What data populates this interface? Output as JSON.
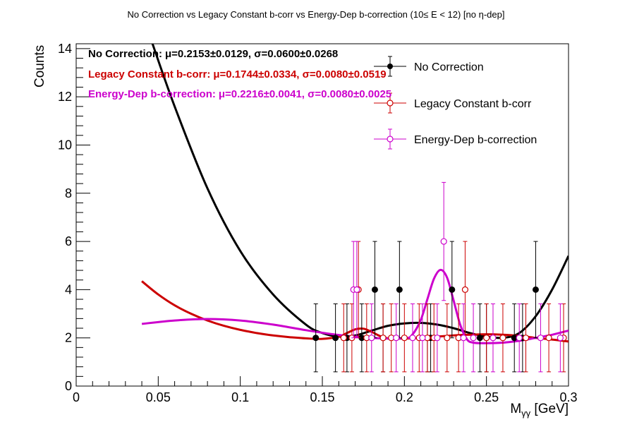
{
  "chart_data": {
    "type": "scatter",
    "title": "No Correction vs Legacy Constant b-corr vs Energy-Dep b-correction   (10≤ E < 12)   [no η-dep]",
    "xlabel": "Mγγ [GeV]",
    "xlabel_main": "M",
    "xlabel_sub": "γγ",
    "xlabel_unit": " [GeV]",
    "ylabel": "Counts",
    "xlim": [
      0,
      0.3
    ],
    "ylim": [
      0,
      14.2
    ],
    "xticks": [
      0,
      0.05,
      0.1,
      0.15,
      0.2,
      0.25,
      0.3
    ],
    "xtick_labels": [
      "0",
      "0.05",
      "0.1",
      "0.15",
      "0.2",
      "0.25",
      "0.3"
    ],
    "yticks": [
      0,
      2,
      4,
      6,
      8,
      10,
      12,
      14
    ],
    "ytick_labels": [
      "0",
      "2",
      "4",
      "6",
      "8",
      "10",
      "12",
      "14"
    ],
    "grid": false,
    "legend_position": "top-right",
    "series": [
      {
        "name": "No Correction",
        "color": "#000000",
        "marker": "filled-circle",
        "points": [
          {
            "x": 0.146,
            "y": 2,
            "err": 1.41
          },
          {
            "x": 0.158,
            "y": 2,
            "err": 1.41
          },
          {
            "x": 0.165,
            "y": 2,
            "err": 1.41
          },
          {
            "x": 0.174,
            "y": 2,
            "err": 1.41
          },
          {
            "x": 0.182,
            "y": 4,
            "err": 2.0
          },
          {
            "x": 0.187,
            "y": 2,
            "err": 1.41
          },
          {
            "x": 0.197,
            "y": 4,
            "err": 2.0
          },
          {
            "x": 0.214,
            "y": 2,
            "err": 1.41
          },
          {
            "x": 0.216,
            "y": 2,
            "err": 1.41
          },
          {
            "x": 0.229,
            "y": 4,
            "err": 2.0
          },
          {
            "x": 0.246,
            "y": 2,
            "err": 1.41
          },
          {
            "x": 0.25,
            "y": 2,
            "err": 1.41
          },
          {
            "x": 0.267,
            "y": 2,
            "err": 1.41
          },
          {
            "x": 0.272,
            "y": 2,
            "err": 1.41
          },
          {
            "x": 0.28,
            "y": 4,
            "err": 2.0
          }
        ],
        "fit": {
          "x": [
            0.045,
            0.06,
            0.08,
            0.1,
            0.12,
            0.14,
            0.15,
            0.16,
            0.17,
            0.18,
            0.19,
            0.2,
            0.21,
            0.22,
            0.23,
            0.24,
            0.25,
            0.26,
            0.27,
            0.28,
            0.29,
            0.3
          ],
          "y": [
            14.5,
            11.6,
            8.2,
            5.6,
            3.8,
            2.55,
            2.2,
            2.05,
            2.1,
            2.3,
            2.5,
            2.6,
            2.62,
            2.55,
            2.4,
            2.2,
            2.05,
            2.0,
            2.2,
            2.9,
            4.0,
            5.4
          ]
        }
      },
      {
        "name": "Legacy Constant b-corr",
        "color": "#cc0000",
        "marker": "open-circle",
        "points": [
          {
            "x": 0.163,
            "y": 2,
            "err": 1.41
          },
          {
            "x": 0.168,
            "y": 2,
            "err": 1.41
          },
          {
            "x": 0.172,
            "y": 4,
            "err": 2.0
          },
          {
            "x": 0.177,
            "y": 2,
            "err": 1.41
          },
          {
            "x": 0.187,
            "y": 2,
            "err": 1.41
          },
          {
            "x": 0.192,
            "y": 2,
            "err": 1.41
          },
          {
            "x": 0.2,
            "y": 2,
            "err": 1.41
          },
          {
            "x": 0.209,
            "y": 2,
            "err": 1.41
          },
          {
            "x": 0.214,
            "y": 2,
            "err": 1.41
          },
          {
            "x": 0.218,
            "y": 2,
            "err": 1.41
          },
          {
            "x": 0.226,
            "y": 2,
            "err": 1.41
          },
          {
            "x": 0.233,
            "y": 2,
            "err": 1.41
          },
          {
            "x": 0.237,
            "y": 4,
            "err": 2.0
          },
          {
            "x": 0.25,
            "y": 2,
            "err": 1.41
          },
          {
            "x": 0.26,
            "y": 2,
            "err": 1.41
          },
          {
            "x": 0.274,
            "y": 2,
            "err": 1.41
          },
          {
            "x": 0.288,
            "y": 2,
            "err": 1.41
          },
          {
            "x": 0.297,
            "y": 2,
            "err": 1.41
          }
        ],
        "fit": {
          "x": [
            0.04,
            0.05,
            0.06,
            0.07,
            0.08,
            0.09,
            0.1,
            0.11,
            0.12,
            0.13,
            0.14,
            0.15,
            0.16,
            0.165,
            0.17,
            0.175,
            0.18,
            0.185,
            0.19,
            0.2,
            0.21,
            0.22,
            0.23,
            0.24,
            0.25,
            0.26,
            0.27,
            0.28,
            0.29,
            0.3
          ],
          "y": [
            4.35,
            3.8,
            3.35,
            3.0,
            2.72,
            2.5,
            2.33,
            2.2,
            2.1,
            2.03,
            1.98,
            1.96,
            2.05,
            2.2,
            2.35,
            2.38,
            2.25,
            2.08,
            1.98,
            1.97,
            2.0,
            2.05,
            2.1,
            2.13,
            2.15,
            2.13,
            2.08,
            2.0,
            1.93,
            1.85
          ]
        }
      },
      {
        "name": "Energy-Dep b-correction",
        "color": "#cc00cc",
        "marker": "open-circle",
        "points": [
          {
            "x": 0.169,
            "y": 4,
            "err": 2.0
          },
          {
            "x": 0.171,
            "y": 4,
            "err": 2.0
          },
          {
            "x": 0.18,
            "y": 2,
            "err": 1.41
          },
          {
            "x": 0.195,
            "y": 2,
            "err": 1.41
          },
          {
            "x": 0.205,
            "y": 2,
            "err": 1.41
          },
          {
            "x": 0.211,
            "y": 2,
            "err": 1.41
          },
          {
            "x": 0.22,
            "y": 2,
            "err": 1.41
          },
          {
            "x": 0.224,
            "y": 6,
            "err": 2.45
          },
          {
            "x": 0.236,
            "y": 2,
            "err": 1.41
          },
          {
            "x": 0.242,
            "y": 2,
            "err": 1.41
          },
          {
            "x": 0.254,
            "y": 2,
            "err": 1.41
          },
          {
            "x": 0.27,
            "y": 2,
            "err": 1.41
          },
          {
            "x": 0.283,
            "y": 2,
            "err": 1.41
          },
          {
            "x": 0.295,
            "y": 2,
            "err": 1.41
          }
        ],
        "fit": {
          "x": [
            0.04,
            0.06,
            0.08,
            0.1,
            0.12,
            0.14,
            0.16,
            0.18,
            0.2,
            0.205,
            0.21,
            0.214,
            0.218,
            0.222,
            0.226,
            0.23,
            0.234,
            0.238,
            0.242,
            0.25,
            0.26,
            0.27,
            0.28,
            0.29,
            0.3
          ],
          "y": [
            2.58,
            2.72,
            2.78,
            2.72,
            2.55,
            2.32,
            2.12,
            2.0,
            1.98,
            2.15,
            2.75,
            3.6,
            4.45,
            4.82,
            4.5,
            3.55,
            2.55,
            1.95,
            1.8,
            1.78,
            1.8,
            1.88,
            2.0,
            2.13,
            2.3
          ]
        }
      }
    ],
    "fit_results": [
      {
        "label": "No Correction:",
        "value": "μ=0.2153±0.0129, σ=0.0600±0.0268",
        "color": "#000000"
      },
      {
        "label": "Legacy Constant b-corr:",
        "value": "μ=0.1744±0.0334, σ=0.0080±0.0519",
        "color": "#cc0000"
      },
      {
        "label": "Energy-Dep b-correction:",
        "value": "μ=0.2216±0.0041, σ=0.0080±0.0025",
        "color": "#cc00cc"
      }
    ]
  }
}
